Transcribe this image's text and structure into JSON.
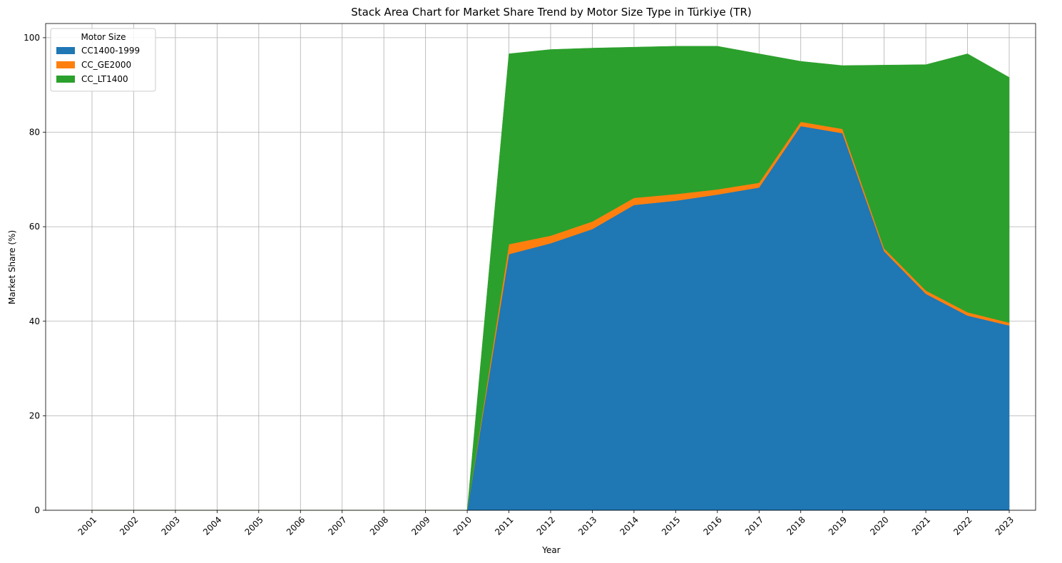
{
  "chart_data": {
    "type": "area",
    "stacked": true,
    "title": "Stack Area Chart for Market Share Trend by Motor Size Type in Türkiye (TR)",
    "xlabel": "Year",
    "ylabel": "Market Share (%)",
    "x": [
      "2001",
      "2002",
      "2003",
      "2004",
      "2005",
      "2006",
      "2007",
      "2008",
      "2009",
      "2010",
      "2011",
      "2012",
      "2013",
      "2014",
      "2015",
      "2016",
      "2017",
      "2018",
      "2019",
      "2020",
      "2021",
      "2022",
      "2023"
    ],
    "ylim": [
      0,
      103
    ],
    "yticks": [
      0,
      20,
      40,
      60,
      80,
      100
    ],
    "grid": true,
    "legend": {
      "title": "Motor Size",
      "placement": "top-left"
    },
    "series": [
      {
        "name": "CC1400-1999",
        "color": "#1f77b4",
        "values": [
          0,
          0,
          0,
          0,
          0,
          0,
          0,
          0,
          0,
          0,
          54.2,
          56.5,
          59.5,
          64.6,
          65.5,
          66.8,
          68.3,
          81.3,
          79.8,
          54.8,
          45.8,
          41.2,
          39.1
        ]
      },
      {
        "name": "CC_GE2000",
        "color": "#ff7f0e",
        "values": [
          0,
          0,
          0,
          0,
          0,
          0,
          0,
          0,
          0,
          0,
          2.1,
          1.6,
          1.6,
          1.5,
          1.4,
          1.1,
          1.0,
          0.9,
          0.9,
          0.6,
          0.7,
          0.7,
          0.6
        ]
      },
      {
        "name": "CC_LT1400",
        "color": "#2ca02c",
        "values": [
          0,
          0,
          0,
          0,
          0,
          0,
          0,
          0,
          0,
          0,
          40.3,
          39.4,
          36.7,
          31.9,
          31.3,
          30.3,
          27.3,
          12.8,
          13.4,
          38.8,
          47.8,
          54.7,
          51.9
        ]
      }
    ]
  }
}
